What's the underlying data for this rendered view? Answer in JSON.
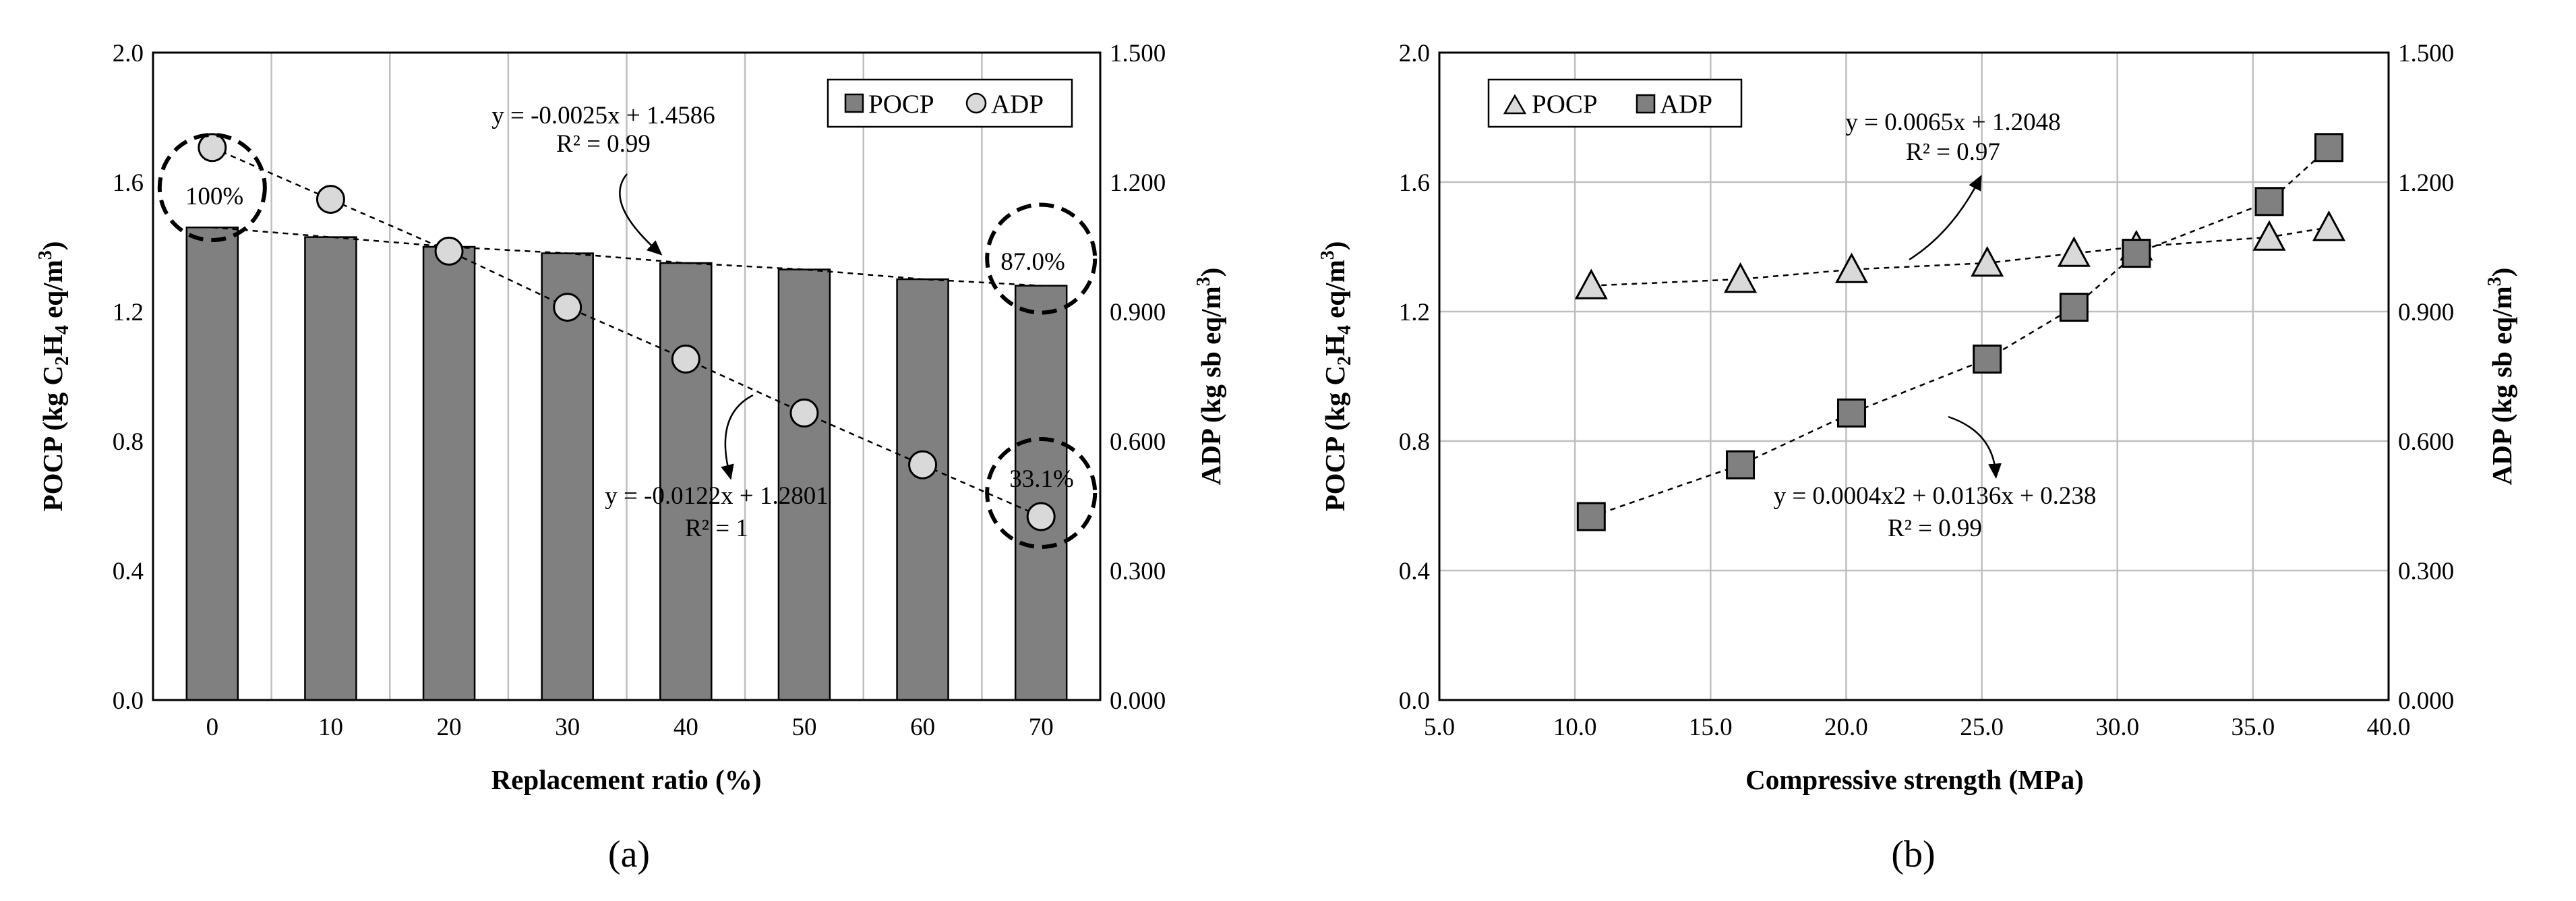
{
  "panels": [
    {
      "label": "(a)",
      "chart_data": {
        "type": "bar",
        "xlabel": "Replacement ratio (%)",
        "ylabel_left": "POCP (kg C2H4 eq/m3)",
        "ylabel_right": "ADP (kg sb eq/m3)",
        "categories": [
          "0",
          "10",
          "20",
          "30",
          "40",
          "50",
          "60",
          "70"
        ],
        "ylim_left": [
          0,
          2.0
        ],
        "ylim_right": [
          0,
          1.5
        ],
        "yticks_left": [
          "0.0",
          "0.4",
          "0.8",
          "1.2",
          "1.6",
          "2.0"
        ],
        "yticks_right": [
          "0.000",
          "0.300",
          "0.600",
          "0.900",
          "1.200",
          "1.500"
        ],
        "grid": "vertical",
        "legend_position": "top-right",
        "series": [
          {
            "name": "POCP",
            "kind": "bar",
            "axis": "left",
            "color": "#808080",
            "values": [
              1.46,
              1.43,
              1.4,
              1.38,
              1.35,
              1.33,
              1.3,
              1.28
            ]
          },
          {
            "name": "ADP",
            "kind": "marker-circle",
            "axis": "right",
            "color": "#d9d9d9",
            "values": [
              1.28,
              1.16,
              1.04,
              0.91,
              0.79,
              0.665,
              0.545,
              0.425
            ]
          }
        ],
        "trendlines": [
          {
            "series": "POCP",
            "equation": "y = -0.0025x + 1.4586",
            "r2": "R² = 0.99"
          },
          {
            "series": "ADP",
            "equation": "y = -0.0122x + 1.2801",
            "r2": "R² = 1"
          }
        ],
        "annotations": [
          {
            "text": "100%",
            "category": "0"
          },
          {
            "text": "87.0%",
            "category": "70"
          },
          {
            "text": "33.1%",
            "category": "70"
          }
        ]
      }
    },
    {
      "label": "(b)",
      "chart_data": {
        "type": "scatter",
        "xlabel": "Compressive strength (MPa)",
        "ylabel_left": "POCP (kg C2H4 eq/m3)",
        "ylabel_right": "ADP (kg sb eq/m3)",
        "xlim": [
          5.0,
          40.0
        ],
        "xticks": [
          "5.0",
          "10.0",
          "15.0",
          "20.0",
          "25.0",
          "30.0",
          "35.0",
          "40.0"
        ],
        "ylim_left": [
          0,
          2.0
        ],
        "ylim_right": [
          0,
          1.5
        ],
        "yticks_left": [
          "0.0",
          "0.4",
          "0.8",
          "1.2",
          "1.6",
          "2.0"
        ],
        "yticks_right": [
          "0.000",
          "0.300",
          "0.600",
          "0.900",
          "1.200",
          "1.500"
        ],
        "grid": "both",
        "legend_position": "top-left",
        "series": [
          {
            "name": "POCP",
            "kind": "marker-triangle",
            "axis": "left",
            "color": "#d9d9d9",
            "x": [
              10.6,
              16.1,
              20.2,
              25.2,
              28.4,
              30.7,
              35.6,
              37.8
            ],
            "y": [
              1.28,
              1.3,
              1.33,
              1.35,
              1.38,
              1.4,
              1.43,
              1.46
            ]
          },
          {
            "name": "ADP",
            "kind": "marker-square",
            "axis": "right",
            "color": "#808080",
            "x": [
              10.6,
              16.1,
              20.2,
              25.2,
              28.4,
              30.7,
              35.6,
              37.8
            ],
            "y": [
              0.425,
              0.545,
              0.665,
              0.79,
              0.91,
              1.035,
              1.155,
              1.28
            ]
          }
        ],
        "trendlines": [
          {
            "series": "POCP",
            "equation": "y = 0.0065x + 1.2048",
            "r2": "R² = 0.97"
          },
          {
            "series": "ADP",
            "equation": "y = 0.0004x2 + 0.0136x + 0.238",
            "r2": "R² = 0.99"
          }
        ]
      }
    }
  ]
}
